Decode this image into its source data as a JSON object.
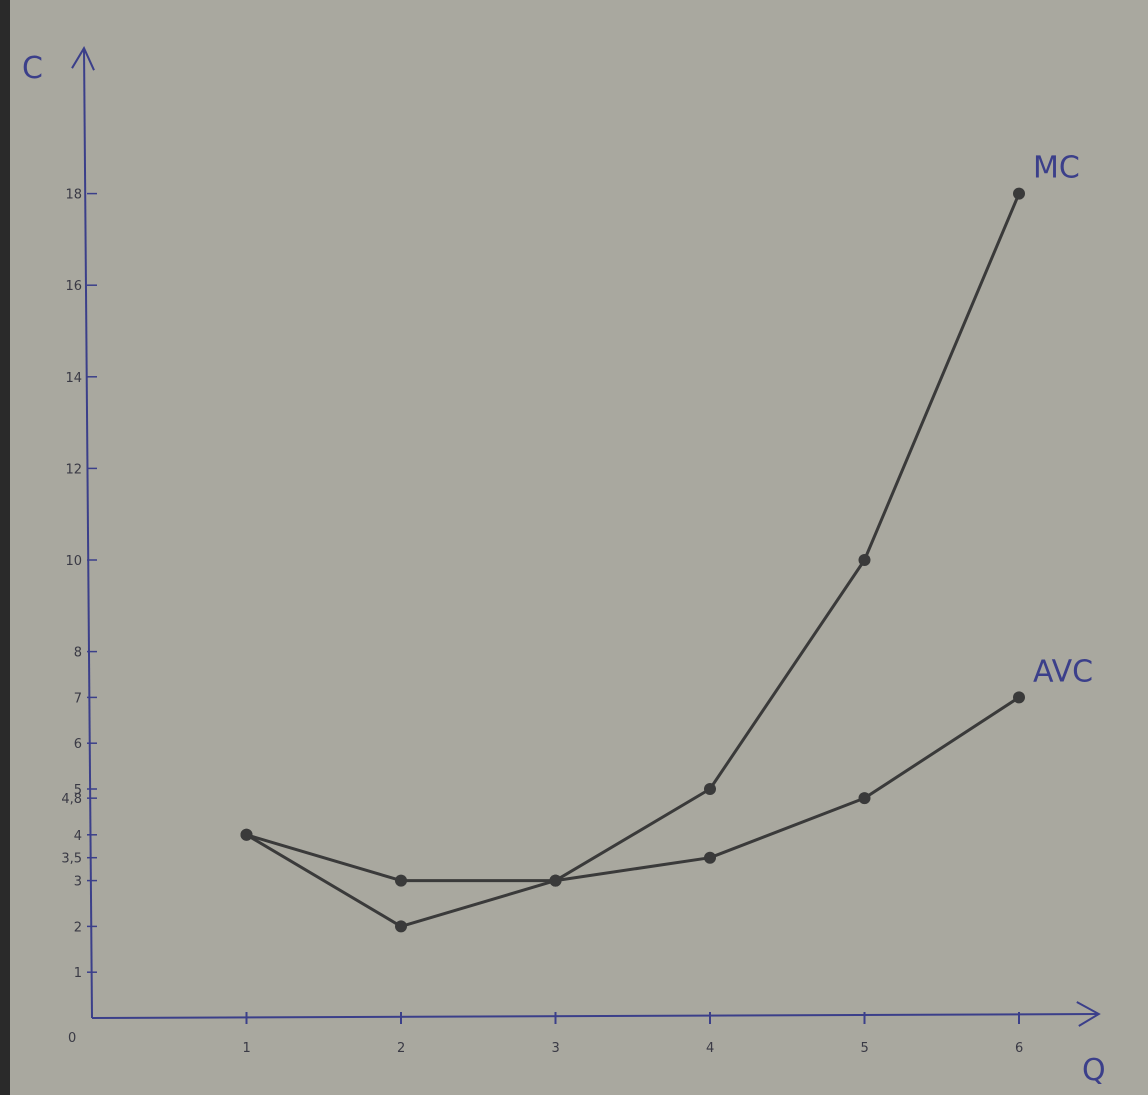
{
  "chart_data": {
    "type": "line",
    "xlabel": "Q",
    "ylabel": "C",
    "origin_label": "0",
    "x_ticks": [
      "1",
      "2",
      "3",
      "4",
      "5",
      "6"
    ],
    "y_ticks": [
      {
        "value": 1,
        "label": "1"
      },
      {
        "value": 2,
        "label": "2"
      },
      {
        "value": 3,
        "label": "3"
      },
      {
        "value": 3.5,
        "label": "3,5"
      },
      {
        "value": 4,
        "label": "4"
      },
      {
        "value": 4.8,
        "label": "4,8"
      },
      {
        "value": 5,
        "label": "5"
      },
      {
        "value": 6,
        "label": "6"
      },
      {
        "value": 7,
        "label": "7"
      },
      {
        "value": 8,
        "label": "8"
      },
      {
        "value": 10,
        "label": "10"
      },
      {
        "value": 12,
        "label": "12"
      },
      {
        "value": 14,
        "label": "14"
      },
      {
        "value": 16,
        "label": "16"
      },
      {
        "value": 18,
        "label": "18"
      }
    ],
    "xlim": [
      0,
      6.4
    ],
    "ylim": [
      0,
      21
    ],
    "grid": false,
    "x": [
      1,
      2,
      3,
      4,
      5,
      6
    ],
    "series": [
      {
        "name": "MC",
        "values": [
          4,
          2,
          3,
          5,
          10,
          18
        ],
        "color": "#3a3a3a"
      },
      {
        "name": "AVC",
        "values": [
          4,
          3,
          3,
          3.5,
          4.8,
          7
        ],
        "color": "#3a3a3a"
      }
    ],
    "axis_color": "#3b3f8a"
  }
}
